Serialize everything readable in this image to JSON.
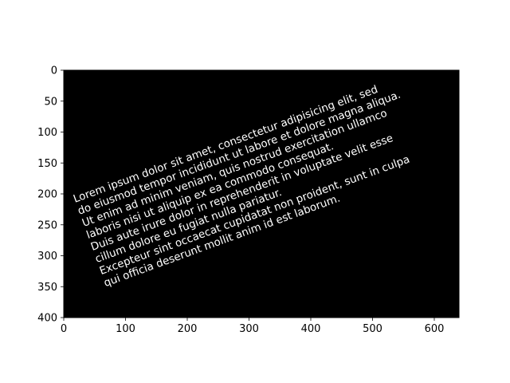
{
  "chart_data": {
    "type": "image",
    "title": "",
    "xlabel": "",
    "ylabel": "",
    "xlim": [
      0,
      640
    ],
    "ylim": [
      400,
      0
    ],
    "y_inverted": true,
    "xticks": [
      0,
      100,
      200,
      300,
      400,
      500,
      600
    ],
    "yticks": [
      0,
      50,
      100,
      150,
      200,
      250,
      300,
      350,
      400
    ],
    "grid": false,
    "background_color": "#000000",
    "text_color": "#ffffff",
    "text_rotation_deg": 20,
    "text_lines": [
      "Lorem ipsum dolor sit amet, consectetur adipisicing elit, sed",
      "do eiusmod tempor incididunt ut labore et dolore magna aliqua.",
      "Ut enim ad minim veniam, quis nostrud exercitation ullamco",
      "laboris nisi ut aliquip ex ea commodo consequat.",
      "Duis aute irure dolor in reprehenderit in voluptate velit esse",
      "cillum dolore eu fugiat nulla pariatur.",
      "Excepteur sint occaecat cupidatat non proident, sunt in culpa",
      "qui officia deserunt mollit anim id est laborum."
    ]
  }
}
